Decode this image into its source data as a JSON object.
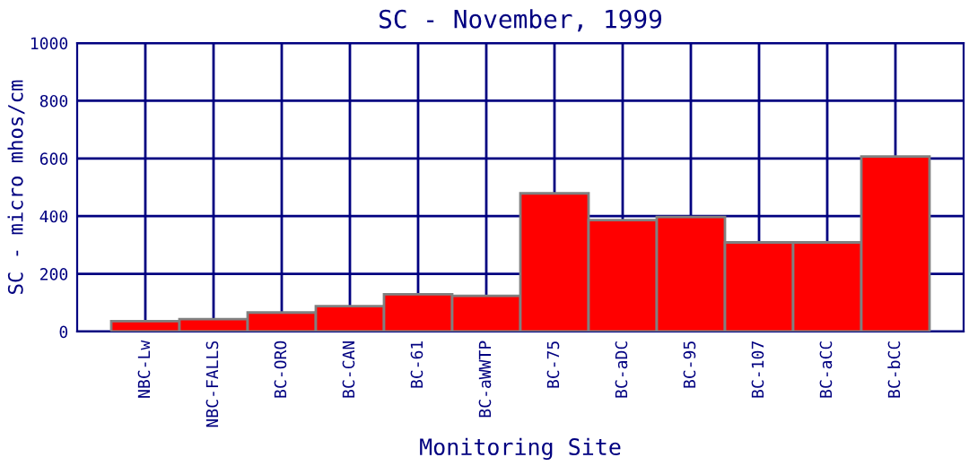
{
  "chart_data": {
    "type": "bar",
    "title": "SC - November, 1999",
    "xlabel": "Monitoring Site",
    "ylabel": "SC - micro mhos/cm",
    "categories": [
      "NBC-Lw",
      "NBC-FALLS",
      "BC-ORO",
      "BC-CAN",
      "BC-61",
      "BC-aWWTP",
      "BC-75",
      "BC-aDC",
      "BC-95",
      "BC-107",
      "BC-aCC",
      "BC-bCC"
    ],
    "values": [
      36,
      43,
      66,
      88,
      129,
      124,
      479,
      386,
      397,
      309,
      309,
      607
    ],
    "color": "#ff0000",
    "ylim": [
      0,
      1000
    ],
    "yticks": [
      0,
      200,
      400,
      600,
      800,
      1000
    ],
    "grid": true
  }
}
